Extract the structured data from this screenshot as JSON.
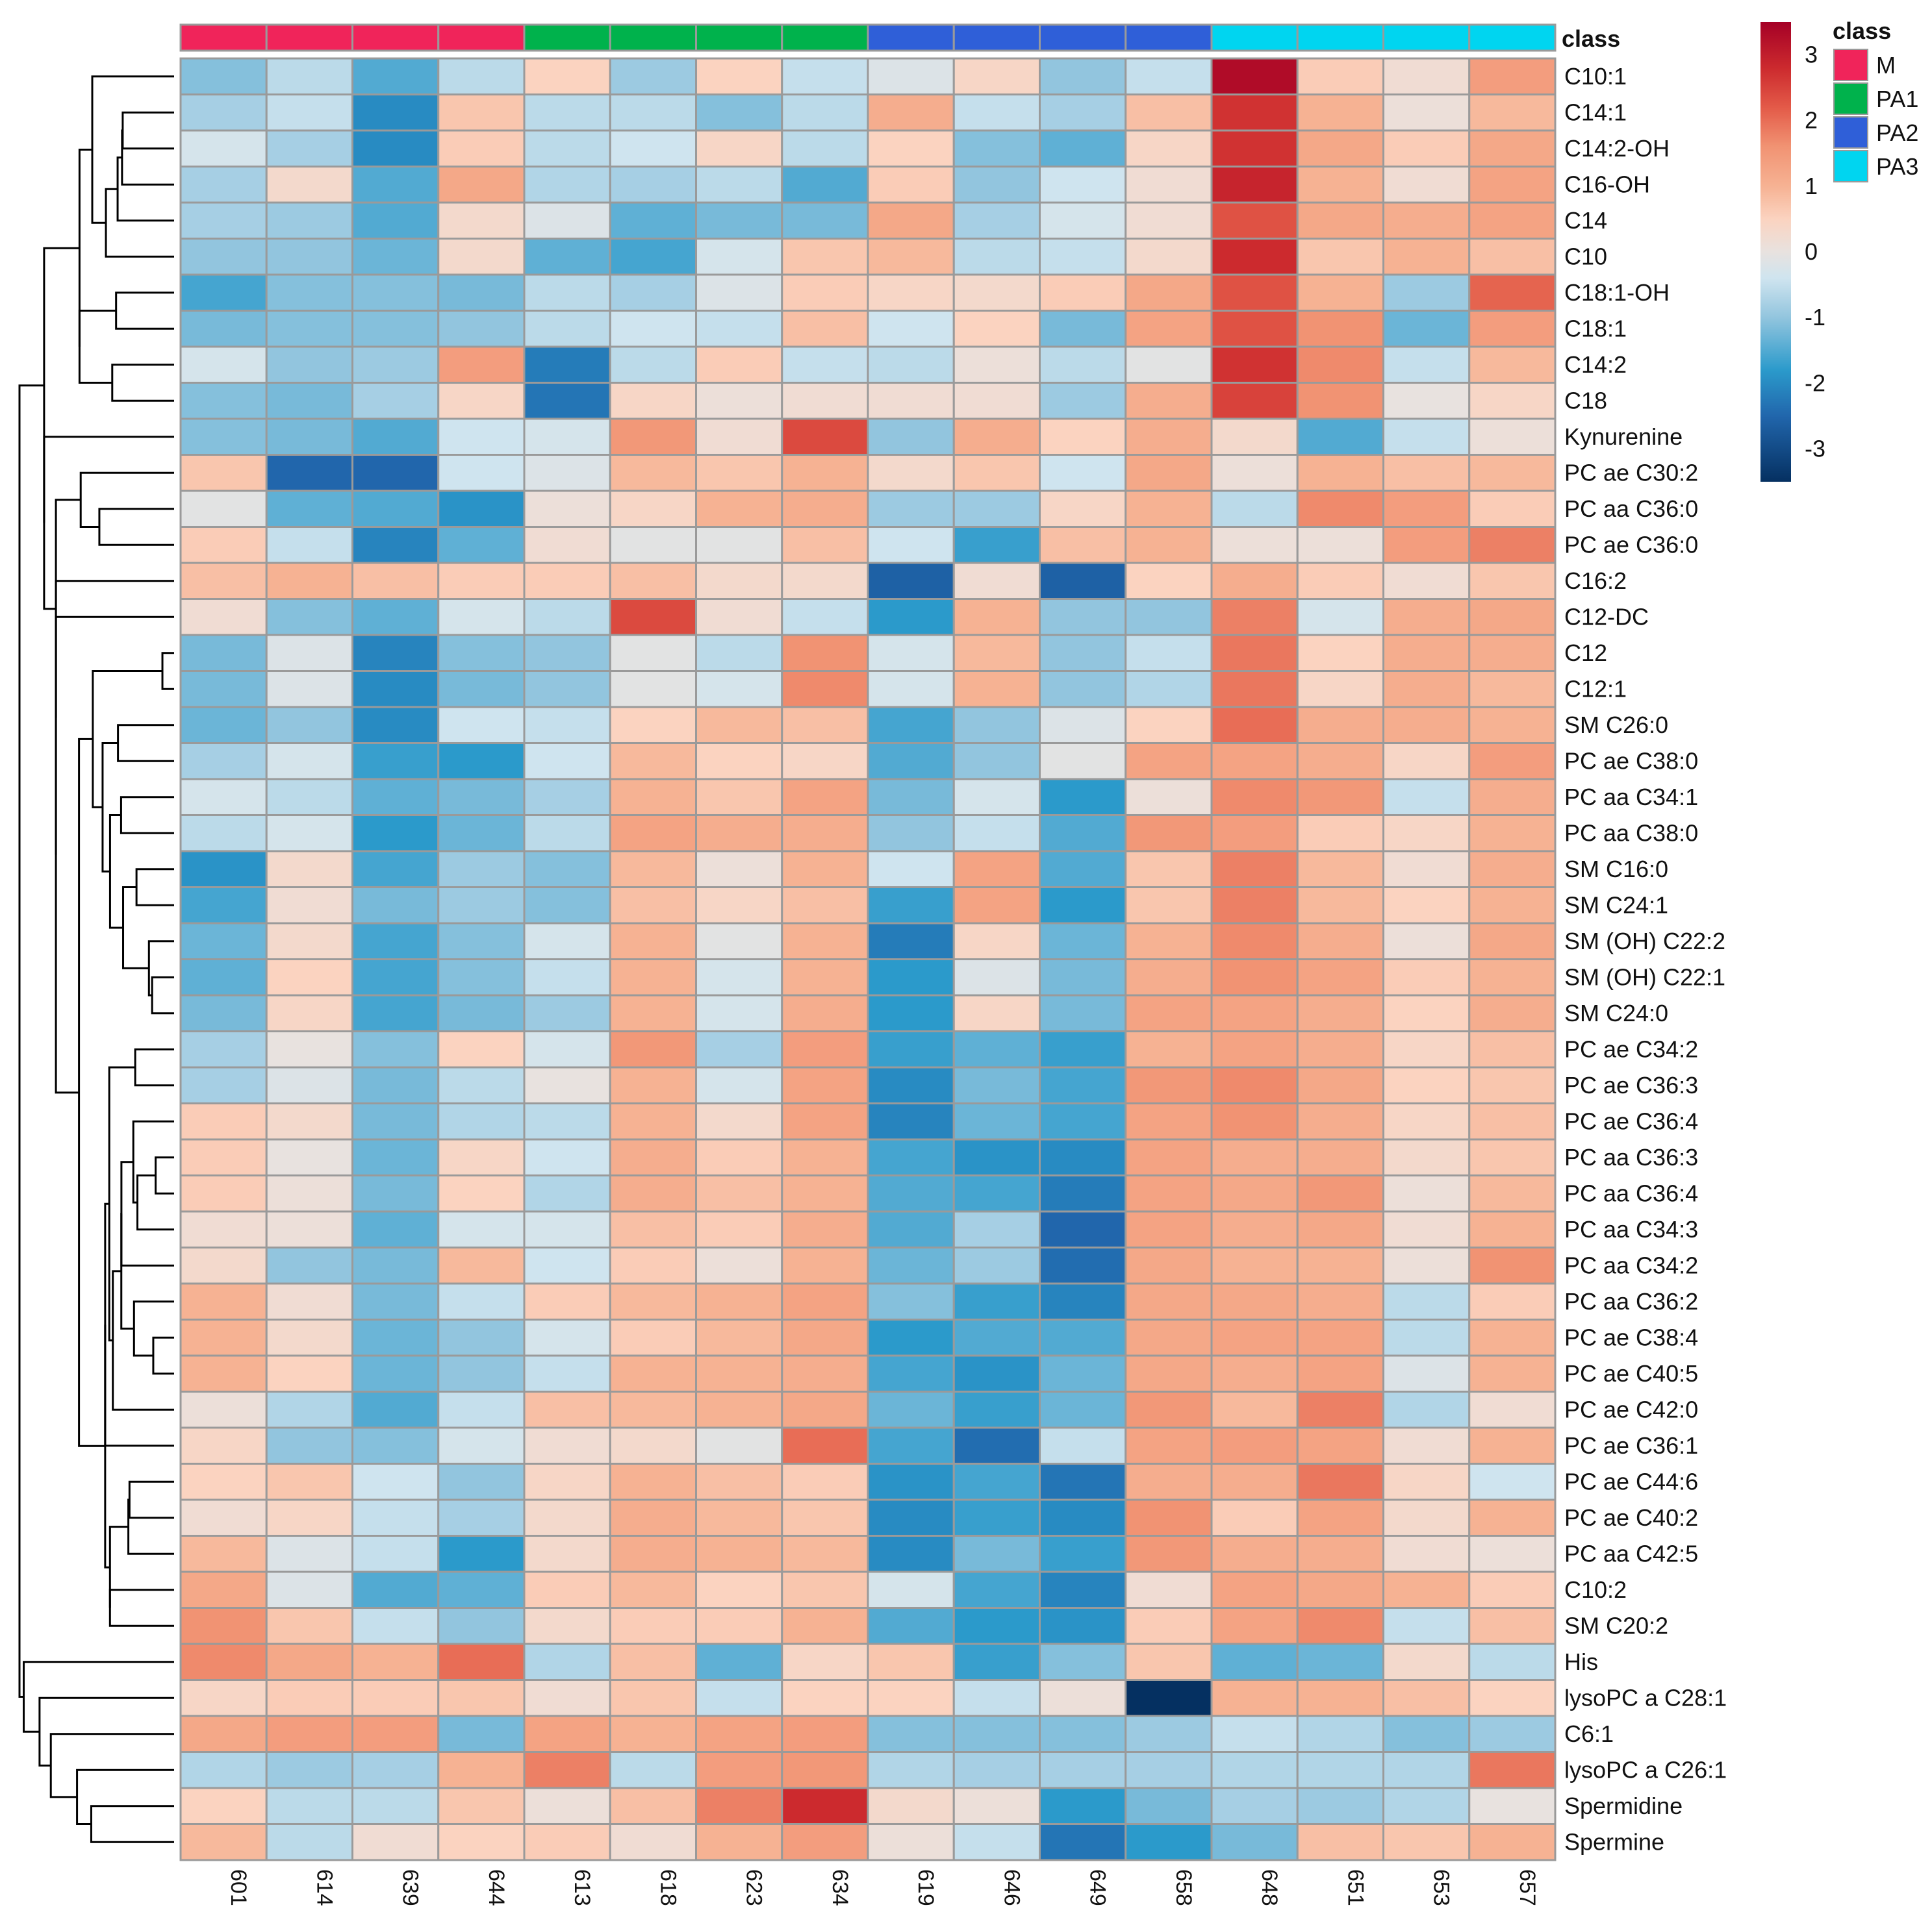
{
  "chart_data": {
    "type": "heatmap",
    "title": "",
    "xlabel": "",
    "ylabel": "",
    "columns": [
      "601",
      "614",
      "639",
      "644",
      "613",
      "618",
      "623",
      "634",
      "619",
      "646",
      "649",
      "658",
      "648",
      "651",
      "653",
      "657"
    ],
    "column_classes": [
      "M",
      "M",
      "M",
      "M",
      "PA1",
      "PA1",
      "PA1",
      "PA1",
      "PA2",
      "PA2",
      "PA2",
      "PA2",
      "PA3",
      "PA3",
      "PA3",
      "PA3"
    ],
    "class_annotation_label": "class",
    "class_legend": {
      "title": "class",
      "entries": [
        {
          "label": "M",
          "color": "#f0245a"
        },
        {
          "label": "PA1",
          "color": "#00b24c"
        },
        {
          "label": "PA2",
          "color": "#2f5fd8"
        },
        {
          "label": "PA3",
          "color": "#00d5f0"
        }
      ]
    },
    "color_scale": {
      "min": -3.5,
      "max": 3.5,
      "ticks": [
        3,
        2,
        1,
        0,
        -1,
        -2,
        -3
      ],
      "stops": [
        {
          "value": -3.5,
          "color": "#053061"
        },
        {
          "value": -2.5,
          "color": "#2166ac"
        },
        {
          "value": -1.8,
          "color": "#2b9acb"
        },
        {
          "value": -1.0,
          "color": "#92c5de"
        },
        {
          "value": -0.4,
          "color": "#cfe4ef"
        },
        {
          "value": 0.0,
          "color": "#e8e2df"
        },
        {
          "value": 0.5,
          "color": "#fbd3c0"
        },
        {
          "value": 1.0,
          "color": "#f6b293"
        },
        {
          "value": 1.6,
          "color": "#f19373"
        },
        {
          "value": 2.2,
          "color": "#e35a48"
        },
        {
          "value": 2.8,
          "color": "#cc2a2e"
        },
        {
          "value": 3.5,
          "color": "#a50026"
        }
      ]
    },
    "rows": [
      {
        "label": "C10:1",
        "values": [
          -1.1,
          -0.6,
          -1.5,
          -0.6,
          0.5,
          -0.9,
          0.5,
          -0.5,
          -0.2,
          0.4,
          -1.0,
          -0.5,
          3.3,
          0.6,
          0.2,
          1.4
        ]
      },
      {
        "label": "C14:1",
        "values": [
          -0.8,
          -0.5,
          -2.0,
          0.7,
          -0.6,
          -0.6,
          -1.1,
          -0.6,
          1.1,
          -0.5,
          -0.8,
          0.8,
          2.7,
          1.0,
          0.1,
          0.9
        ]
      },
      {
        "label": "C14:2-OH",
        "values": [
          -0.3,
          -0.8,
          -2.0,
          0.6,
          -0.6,
          -0.4,
          0.4,
          -0.6,
          0.5,
          -1.1,
          -1.4,
          0.4,
          2.7,
          1.2,
          0.6,
          1.2
        ]
      },
      {
        "label": "C16-OH",
        "values": [
          -0.8,
          0.3,
          -1.5,
          1.2,
          -0.7,
          -0.8,
          -0.6,
          -1.5,
          0.6,
          -1.0,
          -0.4,
          0.2,
          2.9,
          1.0,
          0.2,
          1.3
        ]
      },
      {
        "label": "C14",
        "values": [
          -0.8,
          -0.9,
          -1.5,
          0.3,
          -0.2,
          -1.4,
          -1.2,
          -1.2,
          1.2,
          -0.8,
          -0.3,
          0.2,
          2.3,
          1.2,
          1.1,
          1.3
        ]
      },
      {
        "label": "C10",
        "values": [
          -1.0,
          -1.0,
          -1.3,
          0.3,
          -1.4,
          -1.6,
          -0.3,
          0.7,
          0.9,
          -0.6,
          -0.5,
          0.3,
          2.8,
          0.7,
          1.0,
          0.8
        ]
      },
      {
        "label": "C18:1-OH",
        "values": [
          -1.6,
          -1.1,
          -1.1,
          -1.2,
          -0.6,
          -0.8,
          -0.2,
          0.6,
          0.4,
          0.3,
          0.6,
          1.2,
          2.3,
          1.0,
          -0.9,
          2.1
        ]
      },
      {
        "label": "C18:1",
        "values": [
          -1.2,
          -1.1,
          -1.1,
          -1.0,
          -0.6,
          -0.4,
          -0.5,
          0.8,
          -0.4,
          0.5,
          -1.2,
          1.3,
          2.3,
          1.6,
          -1.3,
          1.4
        ]
      },
      {
        "label": "C14:2",
        "values": [
          -0.3,
          -1.0,
          -0.9,
          1.4,
          -2.2,
          -0.6,
          0.6,
          -0.5,
          -0.6,
          0.1,
          -0.6,
          -0.1,
          2.7,
          1.7,
          -0.5,
          0.9
        ]
      },
      {
        "label": "C18",
        "values": [
          -1.1,
          -1.2,
          -0.8,
          0.4,
          -2.3,
          0.4,
          0.1,
          0.2,
          0.2,
          0.2,
          -0.9,
          1.1,
          2.5,
          1.6,
          0.0,
          0.4
        ]
      },
      {
        "label": "Kynurenine",
        "values": [
          -1.1,
          -1.2,
          -1.5,
          -0.4,
          -0.3,
          1.5,
          0.2,
          2.4,
          -1.0,
          1.1,
          0.5,
          1.1,
          0.3,
          -1.5,
          -0.5,
          0.1
        ]
      },
      {
        "label": "PC ae C30:2",
        "values": [
          0.7,
          -2.5,
          -2.5,
          -0.4,
          -0.2,
          0.9,
          0.7,
          1.0,
          0.3,
          0.7,
          -0.4,
          1.2,
          0.1,
          1.0,
          0.8,
          0.9
        ]
      },
      {
        "label": "PC aa C36:0",
        "values": [
          -0.1,
          -1.4,
          -1.5,
          -1.9,
          0.1,
          0.4,
          1.0,
          1.1,
          -0.9,
          -0.9,
          0.4,
          1.0,
          -0.6,
          1.7,
          1.4,
          0.6
        ]
      },
      {
        "label": "PC ae C36:0",
        "values": [
          0.6,
          -0.5,
          -2.1,
          -1.4,
          0.2,
          -0.1,
          -0.1,
          0.8,
          -0.4,
          -1.7,
          0.8,
          1.0,
          0.1,
          0.1,
          1.4,
          1.8
        ]
      },
      {
        "label": "C16:2",
        "values": [
          0.8,
          1.0,
          0.8,
          0.6,
          0.6,
          0.8,
          0.3,
          0.3,
          -2.6,
          0.2,
          -2.6,
          0.5,
          1.1,
          0.6,
          0.2,
          0.7
        ]
      },
      {
        "label": "C12-DC",
        "values": [
          0.2,
          -1.1,
          -1.4,
          -0.3,
          -0.6,
          2.4,
          0.2,
          -0.5,
          -1.8,
          1.0,
          -1.0,
          -1.0,
          1.8,
          -0.3,
          1.1,
          1.2
        ]
      },
      {
        "label": "C12",
        "values": [
          -1.2,
          -0.2,
          -2.1,
          -1.1,
          -1.0,
          -0.1,
          -0.6,
          1.6,
          -0.3,
          0.9,
          -1.0,
          -0.5,
          1.9,
          0.5,
          1.1,
          1.1
        ]
      },
      {
        "label": "C12:1",
        "values": [
          -1.2,
          -0.2,
          -2.0,
          -1.2,
          -1.0,
          -0.1,
          -0.3,
          1.7,
          -0.3,
          1.0,
          -1.0,
          -0.7,
          1.9,
          0.4,
          1.1,
          0.9
        ]
      },
      {
        "label": "SM C26:0",
        "values": [
          -1.3,
          -1.0,
          -2.0,
          -0.4,
          -0.5,
          0.5,
          0.9,
          0.8,
          -1.6,
          -1.0,
          -0.2,
          0.5,
          2.0,
          1.1,
          1.1,
          1.0
        ]
      },
      {
        "label": "PC ae C38:0",
        "values": [
          -0.8,
          -0.3,
          -1.7,
          -1.8,
          -0.4,
          0.9,
          0.5,
          0.4,
          -1.5,
          -1.0,
          -0.1,
          1.3,
          1.3,
          1.1,
          0.4,
          1.4
        ]
      },
      {
        "label": "PC aa C34:1",
        "values": [
          -0.3,
          -0.6,
          -1.4,
          -1.2,
          -0.8,
          1.0,
          0.7,
          1.3,
          -1.2,
          -0.3,
          -1.8,
          0.1,
          1.7,
          1.5,
          -0.5,
          1.1
        ]
      },
      {
        "label": "PC aa C38:0",
        "values": [
          -0.6,
          -0.3,
          -1.8,
          -1.3,
          -0.6,
          1.3,
          1.1,
          1.1,
          -1.0,
          -0.5,
          -1.5,
          1.5,
          1.4,
          0.6,
          0.4,
          1.0
        ]
      },
      {
        "label": "SM C16:0",
        "values": [
          -1.9,
          0.3,
          -1.6,
          -0.9,
          -1.1,
          0.9,
          0.1,
          1.0,
          -0.4,
          1.3,
          -1.5,
          0.7,
          1.8,
          0.9,
          0.2,
          1.1
        ]
      },
      {
        "label": "SM C24:1",
        "values": [
          -1.6,
          0.2,
          -1.2,
          -0.9,
          -1.1,
          0.8,
          0.4,
          0.8,
          -1.7,
          1.3,
          -1.8,
          0.7,
          1.8,
          0.9,
          0.5,
          1.0
        ]
      },
      {
        "label": "SM (OH) C22:2",
        "values": [
          -1.3,
          0.3,
          -1.6,
          -1.1,
          -0.3,
          1.0,
          -0.1,
          1.0,
          -2.2,
          0.4,
          -1.3,
          1.0,
          1.7,
          1.1,
          0.1,
          1.2
        ]
      },
      {
        "label": "SM (OH) C22:1",
        "values": [
          -1.4,
          0.5,
          -1.6,
          -1.1,
          -0.5,
          1.0,
          -0.3,
          1.0,
          -1.8,
          -0.2,
          -1.2,
          1.1,
          1.6,
          1.3,
          0.6,
          1.0
        ]
      },
      {
        "label": "SM C24:0",
        "values": [
          -1.2,
          0.4,
          -1.6,
          -1.2,
          -0.9,
          1.0,
          -0.3,
          1.1,
          -1.8,
          0.4,
          -1.2,
          1.3,
          1.3,
          1.1,
          0.5,
          1.1
        ]
      },
      {
        "label": "PC ae C34:2",
        "values": [
          -0.8,
          0.0,
          -1.1,
          0.5,
          -0.3,
          1.5,
          -0.8,
          1.4,
          -1.7,
          -1.4,
          -1.7,
          1.0,
          1.3,
          1.1,
          0.4,
          0.8
        ]
      },
      {
        "label": "PC ae C36:3",
        "values": [
          -0.8,
          -0.2,
          -1.2,
          -0.6,
          0.0,
          1.0,
          -0.3,
          1.3,
          -2.0,
          -1.2,
          -1.6,
          1.5,
          1.7,
          1.2,
          0.5,
          0.7
        ]
      },
      {
        "label": "PC ae C36:4",
        "values": [
          0.6,
          0.3,
          -1.2,
          -0.7,
          -0.6,
          1.0,
          0.3,
          1.3,
          -2.1,
          -1.3,
          -1.6,
          1.3,
          1.6,
          1.1,
          0.4,
          0.8
        ]
      },
      {
        "label": "PC aa C36:3",
        "values": [
          0.6,
          0.0,
          -1.3,
          0.4,
          -0.4,
          1.1,
          0.6,
          1.0,
          -1.6,
          -1.9,
          -2.0,
          1.3,
          1.1,
          1.1,
          0.3,
          0.7
        ]
      },
      {
        "label": "PC aa C36:4",
        "values": [
          0.6,
          0.1,
          -1.2,
          0.5,
          -0.7,
          1.1,
          0.8,
          1.0,
          -1.5,
          -1.6,
          -2.2,
          1.3,
          1.2,
          1.5,
          0.1,
          0.9
        ]
      },
      {
        "label": "PC aa C34:3",
        "values": [
          0.2,
          0.1,
          -1.4,
          -0.3,
          -0.3,
          0.8,
          0.6,
          1.1,
          -1.5,
          -0.8,
          -2.5,
          1.3,
          1.1,
          1.2,
          0.2,
          1.0
        ]
      },
      {
        "label": "PC aa C34:2",
        "values": [
          0.3,
          -1.0,
          -1.2,
          0.9,
          -0.4,
          0.6,
          0.1,
          1.0,
          -1.3,
          -0.9,
          -2.4,
          1.2,
          1.0,
          1.0,
          0.1,
          1.6
        ]
      },
      {
        "label": "PC aa C36:2",
        "values": [
          1.0,
          0.2,
          -1.2,
          -0.5,
          0.6,
          0.9,
          1.0,
          1.3,
          -1.1,
          -1.7,
          -2.1,
          1.2,
          1.2,
          1.1,
          -0.6,
          0.6
        ]
      },
      {
        "label": "PC ae C38:4",
        "values": [
          1.0,
          0.3,
          -1.3,
          -1.0,
          -0.3,
          0.6,
          0.9,
          1.2,
          -1.8,
          -1.5,
          -1.5,
          1.2,
          1.3,
          1.3,
          -0.6,
          1.0
        ]
      },
      {
        "label": "PC ae C40:5",
        "values": [
          1.0,
          0.5,
          -1.3,
          -1.0,
          -0.5,
          1.0,
          1.0,
          1.1,
          -1.6,
          -1.9,
          -1.3,
          1.2,
          1.1,
          1.3,
          -0.2,
          1.0
        ]
      },
      {
        "label": "PC ae C42:0",
        "values": [
          0.1,
          -0.7,
          -1.5,
          -0.5,
          0.8,
          0.9,
          1.0,
          1.2,
          -1.3,
          -1.7,
          -1.3,
          1.5,
          0.9,
          1.8,
          -0.7,
          0.2
        ]
      },
      {
        "label": "PC ae C36:1",
        "values": [
          0.4,
          -1.0,
          -1.1,
          -0.3,
          0.2,
          0.3,
          -0.1,
          2.0,
          -1.6,
          -2.4,
          -0.5,
          1.3,
          1.4,
          1.3,
          0.2,
          1.0
        ]
      },
      {
        "label": "PC ae C44:6",
        "values": [
          0.5,
          0.7,
          -0.4,
          -1.0,
          0.4,
          1.0,
          0.8,
          0.6,
          -1.9,
          -1.6,
          -2.3,
          1.1,
          1.1,
          1.9,
          0.4,
          -0.4
        ]
      },
      {
        "label": "PC ae C40:2",
        "values": [
          0.2,
          0.4,
          -0.5,
          -0.8,
          0.3,
          1.1,
          0.9,
          0.7,
          -2.0,
          -1.7,
          -2.0,
          1.6,
          0.6,
          1.3,
          0.3,
          1.0
        ]
      },
      {
        "label": "PC aa C42:5",
        "values": [
          0.9,
          -0.2,
          -0.5,
          -1.8,
          0.3,
          1.1,
          1.0,
          0.9,
          -2.0,
          -1.2,
          -1.7,
          1.5,
          1.1,
          1.1,
          0.2,
          0.1
        ]
      },
      {
        "label": "C10:2",
        "values": [
          1.2,
          -0.2,
          -1.5,
          -1.4,
          0.6,
          0.9,
          0.5,
          0.7,
          -0.3,
          -1.6,
          -2.1,
          0.2,
          1.3,
          1.2,
          1.0,
          0.6
        ]
      },
      {
        "label": "SM C20:2",
        "values": [
          1.6,
          0.7,
          -0.5,
          -1.0,
          0.3,
          0.6,
          0.6,
          1.0,
          -1.5,
          -1.8,
          -1.9,
          0.6,
          1.3,
          1.7,
          -0.5,
          0.8
        ]
      },
      {
        "label": "His",
        "values": [
          1.7,
          1.2,
          1.0,
          2.0,
          -0.7,
          0.8,
          -1.4,
          0.4,
          0.7,
          -1.7,
          -1.1,
          0.7,
          -1.4,
          -1.3,
          0.3,
          -0.6
        ]
      },
      {
        "label": "lysoPC a C28:1",
        "values": [
          0.4,
          0.6,
          0.6,
          0.7,
          0.2,
          0.7,
          -0.5,
          0.5,
          0.5,
          -0.5,
          0.1,
          -3.5,
          1.0,
          1.0,
          0.8,
          0.5
        ]
      },
      {
        "label": "C6:1",
        "values": [
          1.2,
          1.4,
          1.4,
          -1.2,
          1.3,
          1.0,
          1.3,
          1.4,
          -1.1,
          -1.1,
          -1.1,
          -0.9,
          -0.5,
          -0.7,
          -1.1,
          -0.9
        ]
      },
      {
        "label": "lysoPC a C26:1",
        "values": [
          -0.7,
          -0.9,
          -0.8,
          1.0,
          1.8,
          -0.6,
          1.4,
          1.5,
          -0.7,
          -0.8,
          -0.8,
          -0.8,
          -0.7,
          -0.7,
          -0.7,
          1.9
        ]
      },
      {
        "label": "Spermidine",
        "values": [
          0.5,
          -0.6,
          -0.6,
          0.7,
          0.1,
          0.8,
          1.8,
          2.8,
          0.3,
          0.1,
          -1.8,
          -1.2,
          -0.8,
          -0.9,
          -0.7,
          0.0
        ]
      },
      {
        "label": "Spermine",
        "values": [
          0.9,
          -0.6,
          0.2,
          0.5,
          0.6,
          0.2,
          1.0,
          1.4,
          0.1,
          -0.5,
          -2.3,
          -1.8,
          -1.2,
          0.8,
          0.7,
          1.0
        ]
      }
    ]
  }
}
